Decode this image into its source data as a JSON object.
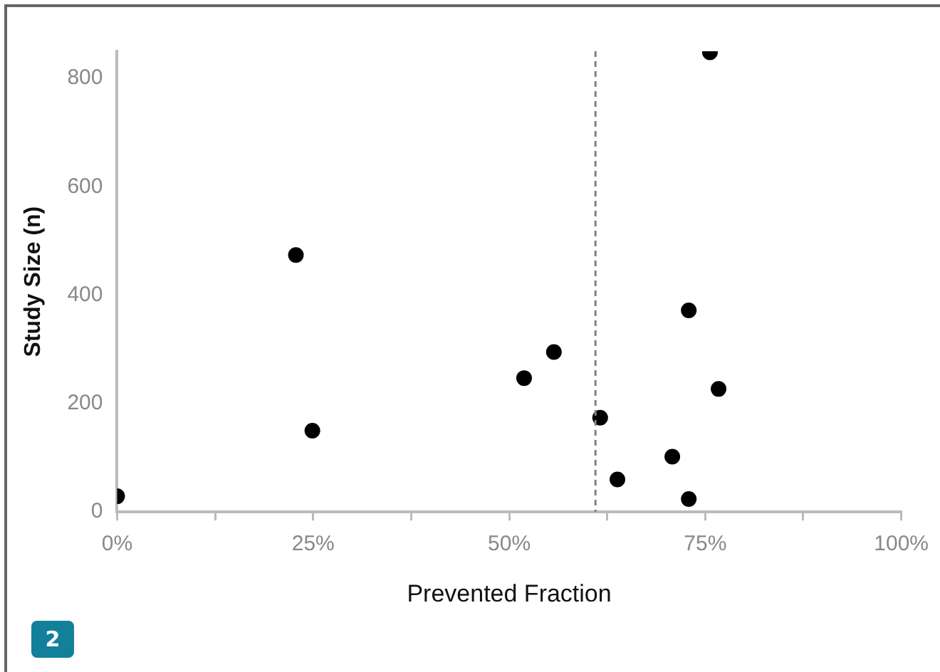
{
  "chart_data": {
    "type": "scatter",
    "xlabel": "Prevented Fraction",
    "ylabel": "Study Size (n)",
    "x": [
      0,
      22.8,
      24.9,
      51.9,
      55.7,
      61.6,
      63.8,
      70.8,
      72.9,
      72.9,
      75.6,
      76.7
    ],
    "values": [
      29,
      474,
      150,
      247,
      295,
      174,
      60,
      102,
      372,
      24,
      848,
      227
    ],
    "color": "#000000",
    "marker": "circle",
    "xlim": [
      0,
      100
    ],
    "xticks": [
      {
        "value": 0,
        "label": "0%"
      },
      {
        "value": 12.5,
        "label": null
      },
      {
        "value": 25,
        "label": "25%"
      },
      {
        "value": 37.5,
        "label": null
      },
      {
        "value": 50,
        "label": "50%"
      },
      {
        "value": 62.5,
        "label": null
      },
      {
        "value": 75,
        "label": "75%"
      },
      {
        "value": 87.5,
        "label": null
      },
      {
        "value": 100,
        "label": "100%"
      }
    ],
    "ylim": [
      0,
      850
    ],
    "yticks": [
      0,
      200,
      400,
      600,
      800
    ],
    "ref_lines": [
      {
        "axis": "x",
        "value": 61,
        "color": "#808080",
        "line_style": "dashed"
      }
    ],
    "annotations": [
      "2"
    ],
    "grid": false,
    "legend": false
  }
}
